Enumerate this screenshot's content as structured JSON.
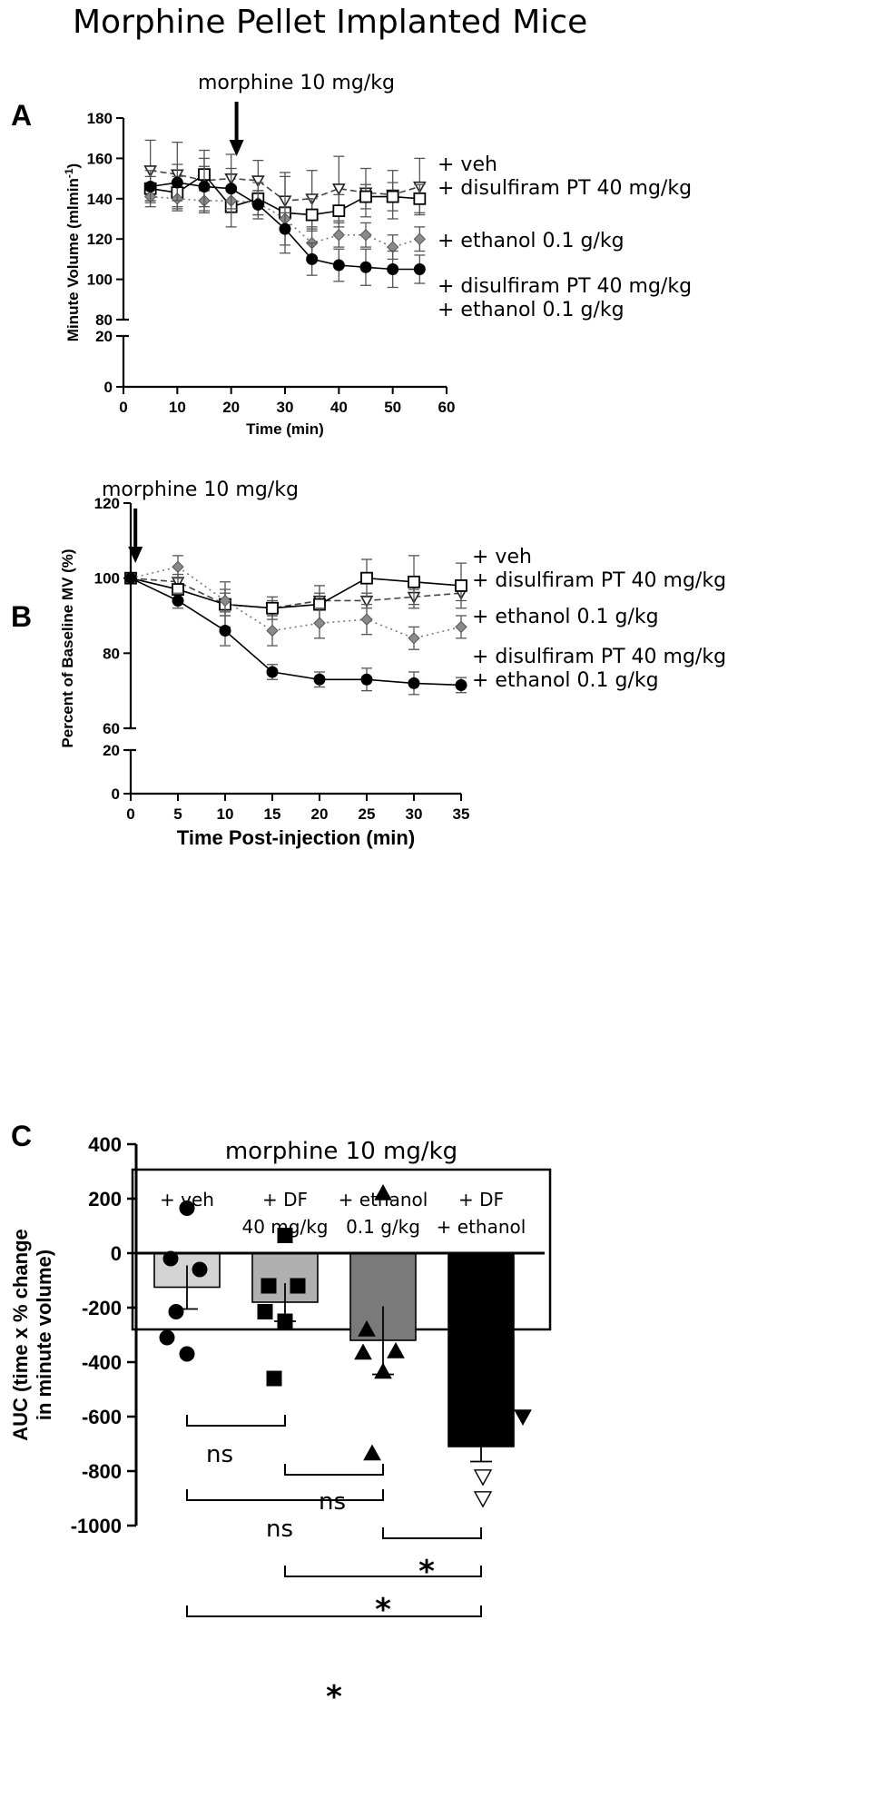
{
  "figure_title": "Morphine Pellet Implanted Mice",
  "chart_data": [
    {
      "panel": "A",
      "type": "line",
      "xlabel": "Time (min)",
      "ylabel": "Minute Volume (mlmin",
      "ylabel_sup": "-1",
      "ylabel_close": ")",
      "xlim": [
        0,
        60
      ],
      "x_ticks": [
        "0",
        "10",
        "20",
        "30",
        "40",
        "50",
        "60"
      ],
      "y_break": true,
      "ylim_lower": [
        0,
        20
      ],
      "ylim_upper": [
        80,
        180
      ],
      "y_ticks_lower": [
        "0",
        "20"
      ],
      "y_ticks_upper": [
        "80",
        "100",
        "120",
        "140",
        "160",
        "180"
      ],
      "arrow_label": "morphine 10 mg/kg",
      "arrow_x": 21,
      "x": [
        5,
        10,
        15,
        20,
        25,
        30,
        35,
        40,
        45,
        50,
        55
      ],
      "series": [
        {
          "marker": "triangle-down-open",
          "line": "dashed",
          "color": "#444444",
          "label_lines": [
            "+ veh"
          ],
          "values": [
            154,
            152,
            149,
            150,
            149,
            139,
            140,
            145,
            143,
            142,
            146
          ],
          "errors": [
            15,
            16,
            15,
            12,
            10,
            12,
            14,
            16,
            12,
            12,
            14
          ]
        },
        {
          "marker": "square-open",
          "line": "solid",
          "color": "#000000",
          "label_lines": [
            "+ disulfiram PT 40 mg/kg"
          ],
          "values": [
            145,
            143,
            152,
            136,
            140,
            133,
            132,
            134,
            141,
            141,
            140
          ],
          "errors": [
            6,
            8,
            8,
            10,
            8,
            20,
            8,
            8,
            6,
            7,
            7
          ]
        },
        {
          "marker": "diamond-gray",
          "line": "dotted",
          "color": "#777777",
          "label_lines": [
            "+ ethanol 0.1 g/kg"
          ],
          "values": [
            141,
            140,
            139,
            139,
            138,
            130,
            118,
            122,
            122,
            116,
            120
          ],
          "errors": [
            5,
            6,
            6,
            6,
            6,
            6,
            7,
            6,
            6,
            6,
            6
          ]
        },
        {
          "marker": "circle-filled",
          "line": "solid",
          "color": "#000000",
          "label_lines": [
            "+ disulfiram PT 40 mg/kg",
            "+ ethanol 0.1 g/kg"
          ],
          "values": [
            146,
            148,
            146,
            145,
            137,
            125,
            110,
            107,
            106,
            105,
            105
          ],
          "errors": [
            8,
            9,
            10,
            10,
            7,
            8,
            8,
            8,
            9,
            9,
            7
          ]
        }
      ]
    },
    {
      "panel": "B",
      "type": "line",
      "xlabel": "Time Post-injection (min)",
      "ylabel": "Percent of Baseline MV (%)",
      "xlim": [
        0,
        35
      ],
      "x_ticks": [
        "0",
        "5",
        "10",
        "15",
        "20",
        "25",
        "30",
        "35"
      ],
      "y_break": true,
      "ylim_lower": [
        0,
        20
      ],
      "ylim_upper": [
        60,
        120
      ],
      "y_ticks_lower": [
        "0",
        "20"
      ],
      "y_ticks_upper": [
        "60",
        "80",
        "100",
        "120"
      ],
      "arrow_label": "morphine 10 mg/kg",
      "arrow_x": 0.5,
      "x": [
        0,
        5,
        10,
        15,
        20,
        25,
        30,
        35
      ],
      "series": [
        {
          "marker": "triangle-down-open",
          "line": "dashed",
          "color": "#444444",
          "label_lines": [
            "+ veh"
          ],
          "values": [
            100,
            99,
            93,
            92,
            94,
            94,
            95,
            96
          ],
          "errors": [
            0,
            2,
            3,
            2,
            2,
            2,
            2,
            2
          ]
        },
        {
          "marker": "square-open",
          "line": "solid",
          "color": "#000000",
          "label_lines": [
            "+ disulfiram PT 40 mg/kg"
          ],
          "values": [
            100,
            97,
            93,
            92,
            93,
            100,
            99,
            98
          ],
          "errors": [
            0,
            3,
            6,
            3,
            5,
            5,
            7,
            6
          ]
        },
        {
          "marker": "diamond-gray",
          "line": "dotted",
          "color": "#777777",
          "label_lines": [
            "+ ethanol 0.1 g/kg"
          ],
          "values": [
            100,
            103,
            94,
            86,
            88,
            89,
            84,
            87
          ],
          "errors": [
            0,
            3,
            3,
            4,
            4,
            4,
            3,
            3
          ]
        },
        {
          "marker": "circle-filled",
          "line": "solid",
          "color": "#000000",
          "label_lines": [
            "+ disulfiram PT 40 mg/kg",
            "+ ethanol 0.1 g/kg"
          ],
          "values": [
            100,
            94,
            86,
            75,
            73,
            73,
            72,
            71.5
          ],
          "errors": [
            0,
            2,
            4,
            2,
            2,
            3,
            3,
            2
          ]
        }
      ]
    },
    {
      "panel": "C",
      "type": "bar",
      "ylabel": "AUC (time x % change in minute volume)",
      "ylabel_lines": [
        "AUC (time x % change",
        "in minute volume)"
      ],
      "ylim": [
        -1000,
        400
      ],
      "y_ticks": [
        400,
        200,
        0,
        -200,
        -400,
        -600,
        -800,
        -1000
      ],
      "box_title": "morphine 10 mg/kg",
      "categories": [
        {
          "label_lines": [
            "+ veh"
          ],
          "mean": -125,
          "sem": 80,
          "fill": "#d4d4d4",
          "points": [
            165,
            -20,
            -60,
            -310,
            -370,
            -215
          ],
          "point_marker": "circle"
        },
        {
          "label_lines": [
            "+ DF",
            "40 mg/kg"
          ],
          "mean": -180,
          "sem": 70,
          "fill": "#b0b0b0",
          "points": [
            65,
            -120,
            -120,
            -215,
            -250,
            -460
          ],
          "point_marker": "square"
        },
        {
          "label_lines": [
            "+ ethanol",
            "0.1 g/kg"
          ],
          "mean": -320,
          "sem": 125,
          "fill": "#7a7a7a",
          "points": [
            220,
            -280,
            -360,
            -365,
            -435,
            -735
          ],
          "point_marker": "triangle-up"
        },
        {
          "label_lines": [
            "+ DF",
            "+ ethanol"
          ],
          "mean": -710,
          "sem": 55,
          "fill": "#000000",
          "points": [
            -575,
            -585,
            -600,
            -600,
            -820,
            -900
          ],
          "point_marker": "triangle-down"
        }
      ],
      "comparisons": [
        {
          "from": 0,
          "to": 1,
          "label": "ns"
        },
        {
          "from": 1,
          "to": 2,
          "label": "ns"
        },
        {
          "from": 0,
          "to": 2,
          "label": "ns"
        },
        {
          "from": 2,
          "to": 3,
          "label": "*"
        },
        {
          "from": 1,
          "to": 3,
          "label": "*"
        },
        {
          "from": 0,
          "to": 3,
          "label": "*"
        }
      ]
    }
  ]
}
